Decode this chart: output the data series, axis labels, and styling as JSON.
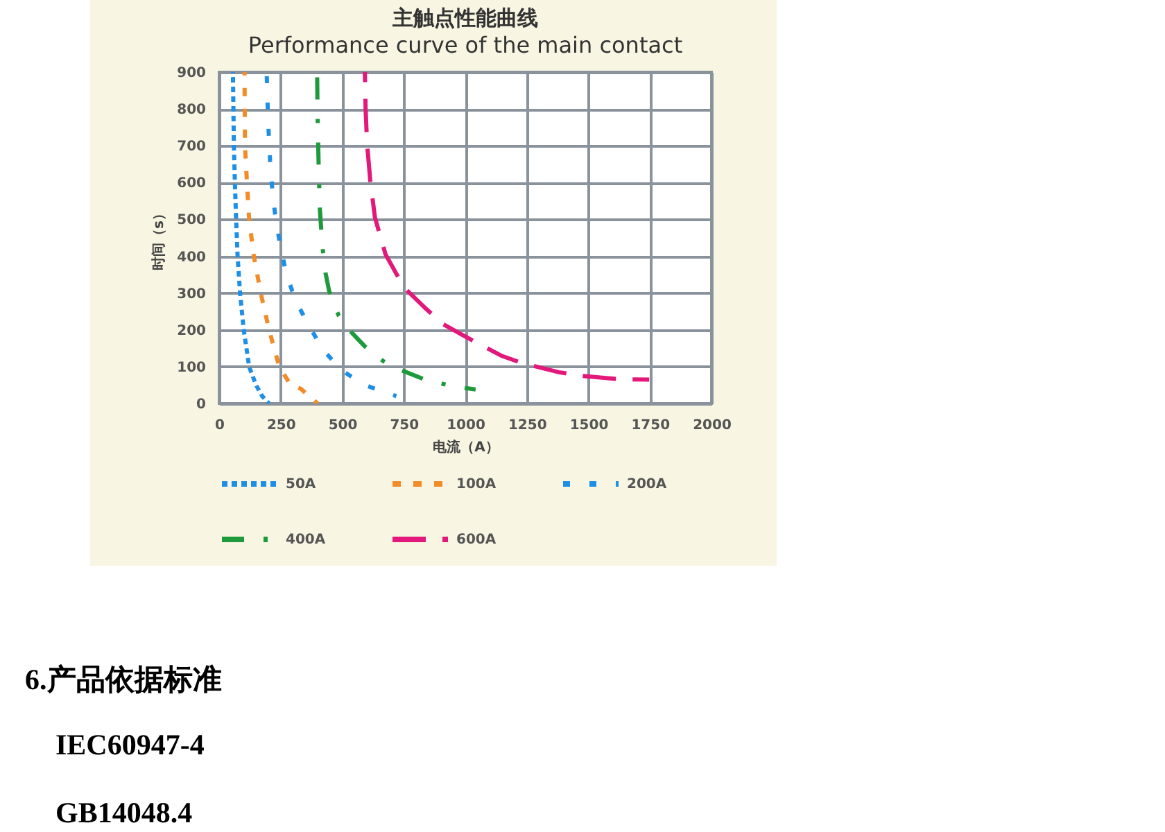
{
  "chart_data": {
    "type": "line",
    "title": "主触点性能曲线",
    "subtitle": "Performance curve of the main contact",
    "xlabel": "电流（A）",
    "ylabel": "时间（s）",
    "xlim": [
      0,
      2000
    ],
    "xticks": [
      0,
      250,
      500,
      750,
      1000,
      1250,
      1500,
      1750,
      2000
    ],
    "ylim": [
      0,
      900
    ],
    "yticks": [
      0,
      100,
      200,
      300,
      400,
      500,
      600,
      700,
      800,
      900
    ],
    "grid": true,
    "legend": "bottom",
    "series": [
      {
        "name": "50A",
        "color": "#1e8fe6",
        "line_style": "dotted",
        "x": [
          56,
          58,
          60,
          64,
          69,
          75,
          85,
          100,
          122,
          150,
          175,
          203
        ],
        "values": [
          900,
          800,
          700,
          600,
          500,
          400,
          300,
          200,
          100,
          50,
          20,
          0
        ]
      },
      {
        "name": "100A",
        "color": "#f28c28",
        "line_style": "dashed",
        "x": [
          103,
          104,
          105,
          113,
          122,
          141,
          169,
          203,
          244,
          291,
          332,
          400
        ],
        "values": [
          900,
          800,
          700,
          600,
          500,
          400,
          300,
          200,
          100,
          50,
          40,
          0
        ]
      },
      {
        "name": "200A",
        "color": "#1e8fe6",
        "line_style": "dashed",
        "x": [
          193,
          197,
          201,
          207,
          216,
          229,
          248,
          272,
          310,
          366,
          423,
          498,
          592,
          720
        ],
        "values": [
          900,
          810,
          740,
          660,
          580,
          505,
          430,
          355,
          280,
          210,
          145,
          90,
          50,
          20
        ]
      },
      {
        "name": "400A",
        "color": "#1e9a3c",
        "line_style": "dashed",
        "x": [
          398,
          400,
          404,
          409,
          419,
          432,
          447,
          485,
          535,
          592,
          667,
          742,
          836,
          948,
          1042
        ],
        "values": [
          900,
          780,
          655,
          530,
          430,
          355,
          305,
          240,
          195,
          155,
          115,
          90,
          65,
          47,
          38
        ]
      },
      {
        "name": "600A",
        "color": "#e2187a",
        "line_style": "dashed",
        "x": [
          592,
          595,
          601,
          614,
          633,
          676,
          751,
          836,
          911,
          1005,
          1146,
          1230,
          1380,
          1474,
          1625,
          1747
        ],
        "values": [
          900,
          800,
          705,
          605,
          505,
          405,
          315,
          260,
          215,
          180,
          130,
          110,
          85,
          75,
          66,
          65
        ]
      }
    ],
    "annotations": [
      "6.产品依据标准",
      "IEC60947-4",
      "GB14048.4"
    ]
  }
}
